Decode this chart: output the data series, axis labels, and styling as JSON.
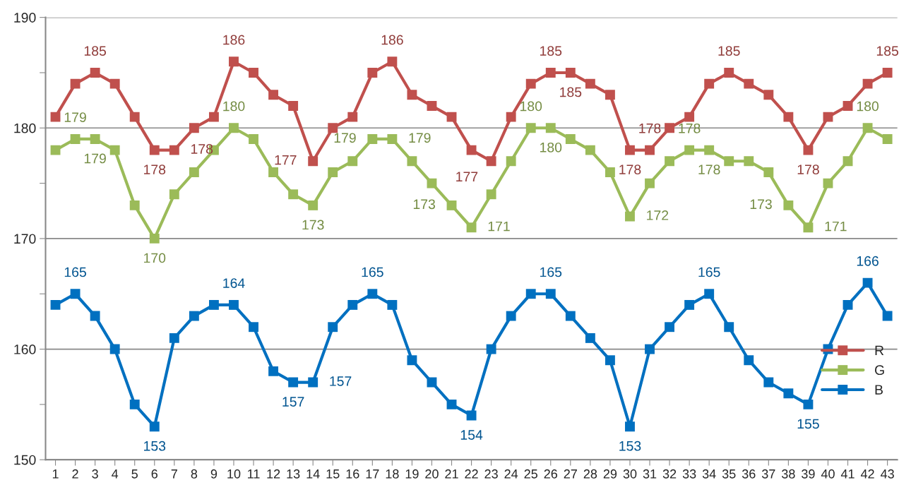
{
  "chart_data": {
    "type": "line",
    "categories": [
      "1",
      "2",
      "3",
      "4",
      "5",
      "6",
      "7",
      "8",
      "9",
      "10",
      "11",
      "12",
      "13",
      "14",
      "15",
      "16",
      "17",
      "18",
      "19",
      "20",
      "21",
      "22",
      "23",
      "24",
      "25",
      "26",
      "27",
      "28",
      "29",
      "30",
      "31",
      "32",
      "33",
      "34",
      "35",
      "36",
      "37",
      "38",
      "39",
      "40",
      "41",
      "42",
      "43"
    ],
    "series": [
      {
        "name": "R",
        "color": "#c0504d",
        "values": [
          181,
          184,
          185,
          184,
          181,
          178,
          178,
          180,
          181,
          186,
          185,
          183,
          182,
          177,
          180,
          181,
          185,
          186,
          183,
          182,
          181,
          178,
          177,
          181,
          184,
          185,
          185,
          184,
          183,
          178,
          178,
          180,
          181,
          184,
          185,
          184,
          183,
          181,
          178,
          181,
          182,
          184,
          185
        ],
        "value_labels": [
          null,
          null,
          "185",
          null,
          null,
          "178",
          "178",
          null,
          null,
          "186",
          null,
          null,
          null,
          "177",
          null,
          null,
          null,
          "186",
          null,
          null,
          null,
          null,
          "177",
          null,
          null,
          "185",
          "185",
          null,
          null,
          "178",
          "178",
          null,
          null,
          null,
          "185",
          null,
          null,
          null,
          "178",
          null,
          null,
          null,
          "185"
        ]
      },
      {
        "name": "G",
        "color": "#9bbb59",
        "values": [
          178,
          179,
          179,
          178,
          173,
          170,
          174,
          176,
          178,
          180,
          179,
          176,
          174,
          173,
          176,
          177,
          179,
          179,
          177,
          175,
          173,
          171,
          174,
          177,
          180,
          180,
          179,
          178,
          176,
          172,
          175,
          177,
          178,
          178,
          177,
          177,
          176,
          173,
          171,
          175,
          177,
          180,
          179
        ],
        "value_labels": [
          null,
          "179",
          "179",
          null,
          null,
          "170",
          null,
          null,
          null,
          "180",
          null,
          null,
          null,
          "173",
          null,
          null,
          "179",
          "179",
          null,
          null,
          "173",
          "171",
          null,
          null,
          "180",
          "180",
          null,
          null,
          null,
          "172",
          null,
          null,
          "178",
          "178",
          null,
          null,
          null,
          "173",
          "171",
          null,
          null,
          "180",
          null
        ]
      },
      {
        "name": "B",
        "color": "#0070c0",
        "values": [
          164,
          165,
          163,
          160,
          155,
          153,
          161,
          163,
          164,
          164,
          162,
          158,
          157,
          157,
          162,
          164,
          165,
          164,
          159,
          157,
          155,
          154,
          160,
          163,
          165,
          165,
          163,
          161,
          159,
          153,
          160,
          162,
          164,
          165,
          162,
          159,
          157,
          156,
          155,
          160,
          164,
          166,
          163
        ],
        "value_labels": [
          null,
          "165",
          null,
          null,
          null,
          "153",
          null,
          null,
          null,
          "164",
          null,
          null,
          "157",
          "157",
          null,
          null,
          "165",
          null,
          null,
          null,
          null,
          "154",
          null,
          null,
          null,
          "165",
          null,
          null,
          null,
          "153",
          null,
          null,
          null,
          "165",
          null,
          null,
          null,
          null,
          "155",
          null,
          null,
          "166",
          null
        ]
      }
    ],
    "ylim": [
      150,
      190
    ],
    "yticks": [
      150,
      {
        "value": 155,
        "label": null
      },
      160,
      {
        "value": 165,
        "label": null
      },
      170,
      {
        "value": 175,
        "label": null
      },
      180,
      {
        "value": 185,
        "label": null
      },
      190
    ],
    "grid": "y",
    "legend": "right",
    "marker": "square",
    "line_style": "solid"
  }
}
